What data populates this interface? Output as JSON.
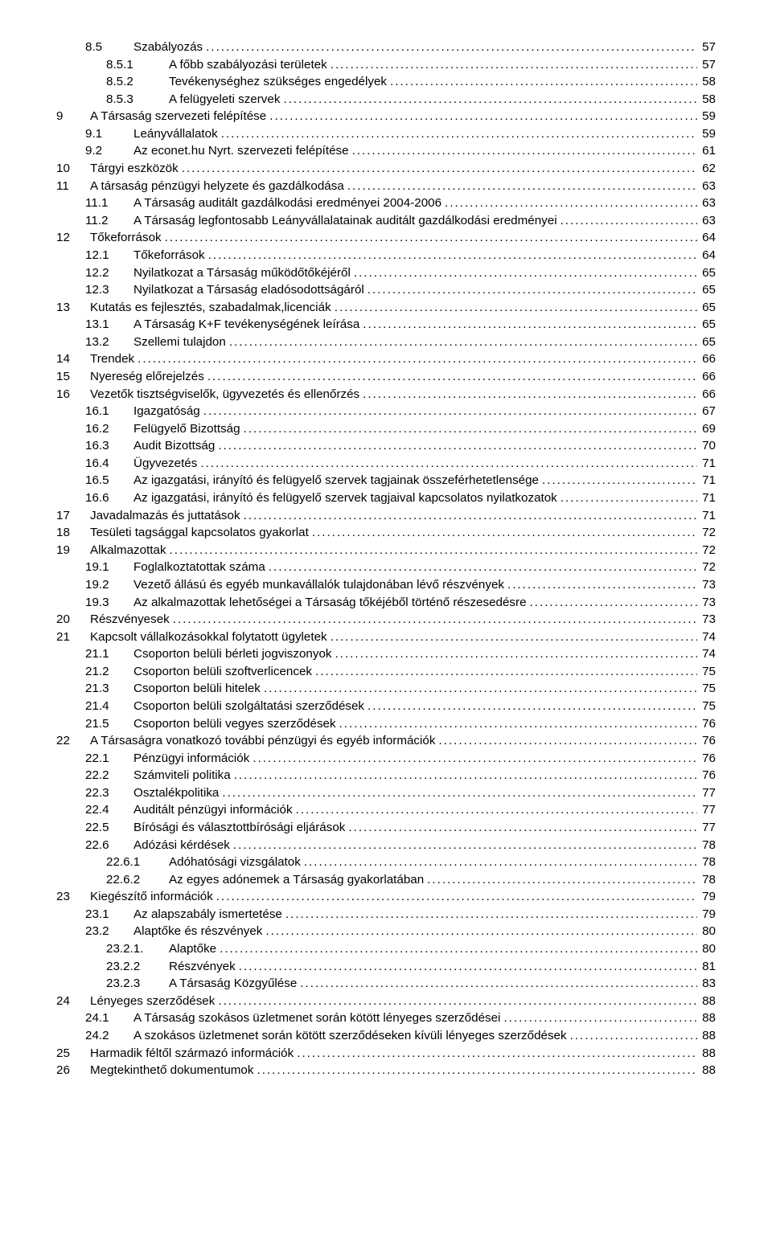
{
  "toc": [
    {
      "indent": 1,
      "num": "8.5",
      "title": "Szabályozás",
      "page": "57"
    },
    {
      "indent": 2,
      "num": "8.5.1",
      "title": "A főbb szabályozási területek",
      "page": "57"
    },
    {
      "indent": 2,
      "num": "8.5.2",
      "title": "Tevékenységhez szükséges engedélyek",
      "page": "58"
    },
    {
      "indent": 2,
      "num": "8.5.3",
      "title": "A felügyeleti szervek",
      "page": "58"
    },
    {
      "indent": 0,
      "num": "9",
      "title": "A Társaság szervezeti felépítése",
      "page": "59"
    },
    {
      "indent": 1,
      "num": "9.1",
      "title": "Leányvállalatok",
      "page": "59"
    },
    {
      "indent": 1,
      "num": "9.2",
      "title": "Az econet.hu Nyrt. szervezeti felépítése",
      "page": "61"
    },
    {
      "indent": 0,
      "num": "10",
      "title": "Tárgyi eszközök",
      "page": "62"
    },
    {
      "indent": 0,
      "num": "11",
      "title": "A társaság pénzügyi helyzete és gazdálkodása",
      "page": "63"
    },
    {
      "indent": 1,
      "num": "11.1",
      "title": "A Társaság auditált gazdálkodási eredményei 2004-2006",
      "page": "63"
    },
    {
      "indent": 1,
      "num": "11.2",
      "title": "A Társaság legfontosabb Leányvállalatainak auditált gazdálkodási eredményei",
      "page": "63"
    },
    {
      "indent": 0,
      "num": "12",
      "title": "Tőkeforrások",
      "page": "64"
    },
    {
      "indent": 1,
      "num": "12.1",
      "title": "Tőkeforrások",
      "page": "64"
    },
    {
      "indent": 1,
      "num": "12.2",
      "title": "Nyilatkozat a Társaság működőtőkéjéről",
      "page": "65"
    },
    {
      "indent": 1,
      "num": "12.3",
      "title": "Nyilatkozat a Társaság eladósodottságáról",
      "page": "65"
    },
    {
      "indent": 0,
      "num": "13",
      "title": "Kutatás es fejlesztés, szabadalmak,licenciák",
      "page": "65"
    },
    {
      "indent": 1,
      "num": "13.1",
      "title": "A Társaság K+F tevékenységének leírása",
      "page": "65"
    },
    {
      "indent": 1,
      "num": "13.2",
      "title": "Szellemi tulajdon",
      "page": "65"
    },
    {
      "indent": 0,
      "num": "14",
      "title": "Trendek",
      "page": "66"
    },
    {
      "indent": 0,
      "num": "15",
      "title": "Nyereség előrejelzés",
      "page": "66"
    },
    {
      "indent": 0,
      "num": "16",
      "title": "Vezetők tisztségviselők, ügyvezetés és ellenőrzés",
      "page": "66"
    },
    {
      "indent": 1,
      "num": "16.1",
      "title": "Igazgatóság",
      "page": "67"
    },
    {
      "indent": 1,
      "num": "16.2",
      "title": "Felügyelő Bizottság",
      "page": "69"
    },
    {
      "indent": 1,
      "num": "16.3",
      "title": "Audit Bizottság",
      "page": "70"
    },
    {
      "indent": 1,
      "num": "16.4",
      "title": "Ügyvezetés",
      "page": "71"
    },
    {
      "indent": 1,
      "num": "16.5",
      "title": "Az igazgatási, irányító és felügyelő szervek tagjainak összeférhetetlensége",
      "page": "71"
    },
    {
      "indent": 1,
      "num": "16.6",
      "title": "Az igazgatási, irányító és felügyelő szervek tagjaival kapcsolatos nyilatkozatok",
      "page": "71"
    },
    {
      "indent": 0,
      "num": "17",
      "title": "Javadalmazás és juttatások",
      "page": "71"
    },
    {
      "indent": 0,
      "num": "18",
      "title": "Tesületi tagsággal kapcsolatos gyakorlat",
      "page": "72"
    },
    {
      "indent": 0,
      "num": "19",
      "title": "Alkalmazottak",
      "page": "72"
    },
    {
      "indent": 1,
      "num": "19.1",
      "title": "Foglalkoztatottak száma",
      "page": "72"
    },
    {
      "indent": 1,
      "num": "19.2",
      "title": "Vezető állású és egyéb munkavállalók tulajdonában lévő részvények",
      "page": "73"
    },
    {
      "indent": 1,
      "num": "19.3",
      "title": "Az alkalmazottak lehetőségei a Társaság tőkéjéből történő részesedésre",
      "page": "73"
    },
    {
      "indent": 0,
      "num": "20",
      "title": "Részvényesek",
      "page": "73"
    },
    {
      "indent": 0,
      "num": "21",
      "title": "Kapcsolt vállalkozásokkal folytatott ügyletek",
      "page": "74"
    },
    {
      "indent": 1,
      "num": "21.1",
      "title": "Csoporton belüli bérleti jogviszonyok",
      "page": "74"
    },
    {
      "indent": 1,
      "num": "21.2",
      "title": "Csoporton belüli szoftverlicencek",
      "page": "75"
    },
    {
      "indent": 1,
      "num": "21.3",
      "title": "Csoporton belüli hitelek",
      "page": "75"
    },
    {
      "indent": 1,
      "num": "21.4",
      "title": "Csoporton belüli szolgáltatási szerződések",
      "page": "75"
    },
    {
      "indent": 1,
      "num": "21.5",
      "title": "Csoporton belüli vegyes szerződések",
      "page": "76"
    },
    {
      "indent": 0,
      "num": "22",
      "title": "A Társaságra vonatkozó további pénzügyi és egyéb információk",
      "page": "76"
    },
    {
      "indent": 1,
      "num": "22.1",
      "title": "Pénzügyi információk",
      "page": "76"
    },
    {
      "indent": 1,
      "num": "22.2",
      "title": "Számviteli politika",
      "page": "76"
    },
    {
      "indent": 1,
      "num": "22.3",
      "title": "Osztalékpolitika",
      "page": "77"
    },
    {
      "indent": 1,
      "num": "22.4",
      "title": "Auditált pénzügyi információk",
      "page": "77"
    },
    {
      "indent": 1,
      "num": "22.5",
      "title": "Bírósági és választottbírósági eljárások",
      "page": "77"
    },
    {
      "indent": 1,
      "num": "22.6",
      "title": "Adózási kérdések",
      "page": "78"
    },
    {
      "indent": 2,
      "num": "22.6.1",
      "title": "Adóhatósági vizsgálatok",
      "page": "78"
    },
    {
      "indent": 2,
      "num": "22.6.2",
      "title": "Az egyes adónemek a Társaság gyakorlatában",
      "page": "78"
    },
    {
      "indent": 0,
      "num": "23",
      "title": "Kiegészítő információk",
      "page": "79"
    },
    {
      "indent": 1,
      "num": "23.1",
      "title": "Az alapszabály ismertetése",
      "page": "79"
    },
    {
      "indent": 1,
      "num": "23.2",
      "title": "Alaptőke és részvények",
      "page": "80"
    },
    {
      "indent": 2,
      "num": "23.2.1.",
      "title": "Alaptőke",
      "page": "80"
    },
    {
      "indent": 2,
      "num": "23.2.2",
      "title": "Részvények",
      "page": "81"
    },
    {
      "indent": 2,
      "num": "23.2.3",
      "title": "A Társaság Közgyűlése",
      "page": "83"
    },
    {
      "indent": 0,
      "num": "24",
      "title": "Lényeges szerződések",
      "page": "88"
    },
    {
      "indent": 1,
      "num": "24.1",
      "title": "A Társaság szokásos üzletmenet során kötött lényeges szerződései",
      "page": "88"
    },
    {
      "indent": 1,
      "num": "24.2",
      "title": "A szokásos üzletmenet során kötött szerződéseken kívüli lényeges szerződések",
      "page": "88"
    },
    {
      "indent": 0,
      "num": "25",
      "title": "Harmadik féltől származó információk",
      "page": "88"
    },
    {
      "indent": 0,
      "num": "26",
      "title": "Megtekinthető dokumentumok",
      "page": "88"
    }
  ]
}
